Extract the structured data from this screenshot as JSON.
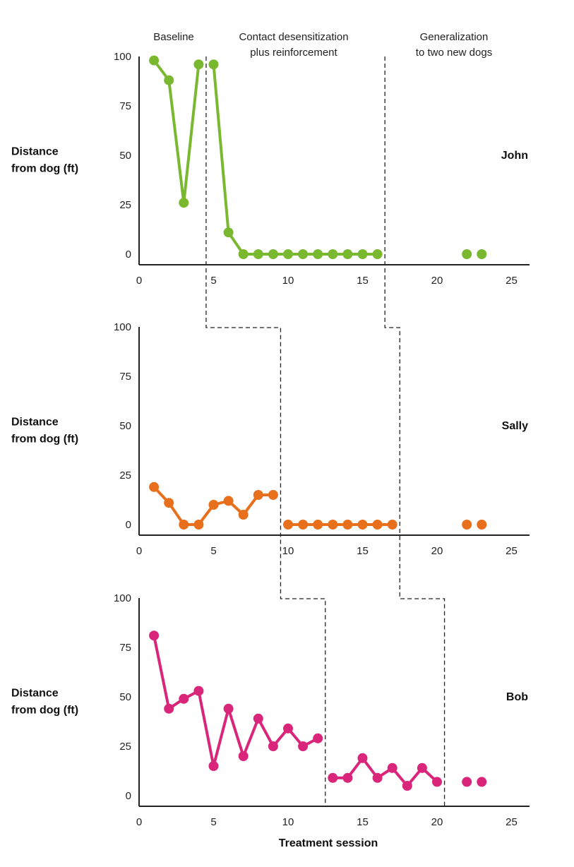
{
  "chart_data": {
    "type": "line",
    "xlabel": "Treatment session",
    "ylabel_lines": [
      "Distance",
      "from dog (ft)"
    ],
    "xlim": [
      0,
      25
    ],
    "ylim": [
      0,
      100
    ],
    "xticks": [
      0,
      5,
      10,
      15,
      20,
      25
    ],
    "yticks": [
      0,
      25,
      50,
      75,
      100
    ],
    "phases": [
      {
        "lines": [
          "Baseline"
        ]
      },
      {
        "lines": [
          "Contact desensitization",
          "plus reinforcement"
        ]
      },
      {
        "lines": [
          "Generalization",
          "to two new dogs"
        ]
      }
    ],
    "panels": [
      {
        "participant": "John",
        "color": "#7ab830",
        "phase_change_after": [
          4.5,
          16.5
        ],
        "segments": [
          [
            [
              1,
              98
            ],
            [
              2,
              88
            ],
            [
              3,
              26
            ],
            [
              4,
              96
            ]
          ],
          [
            [
              5,
              96
            ],
            [
              6,
              11
            ],
            [
              7,
              0
            ],
            [
              8,
              0
            ],
            [
              9,
              0
            ],
            [
              10,
              0
            ],
            [
              11,
              0
            ],
            [
              12,
              0
            ],
            [
              13,
              0
            ],
            [
              14,
              0
            ],
            [
              15,
              0
            ],
            [
              16,
              0
            ]
          ],
          [
            [
              22,
              0
            ]
          ],
          [
            [
              23,
              0
            ]
          ]
        ]
      },
      {
        "participant": "Sally",
        "color": "#e8701d",
        "phase_change_after": [
          9.5,
          17.5
        ],
        "segments": [
          [
            [
              1,
              19
            ],
            [
              2,
              11
            ],
            [
              3,
              0
            ],
            [
              4,
              0
            ],
            [
              5,
              10
            ],
            [
              6,
              12
            ],
            [
              7,
              5
            ],
            [
              8,
              15
            ],
            [
              9,
              15
            ]
          ],
          [
            [
              10,
              0
            ],
            [
              11,
              0
            ],
            [
              12,
              0
            ],
            [
              13,
              0
            ],
            [
              14,
              0
            ],
            [
              15,
              0
            ],
            [
              16,
              0
            ],
            [
              17,
              0
            ]
          ],
          [
            [
              22,
              0
            ]
          ],
          [
            [
              23,
              0
            ]
          ]
        ]
      },
      {
        "participant": "Bob",
        "color": "#d9267a",
        "phase_change_after": [
          12.5,
          20.5
        ],
        "segments": [
          [
            [
              1,
              81
            ],
            [
              2,
              44
            ],
            [
              3,
              49
            ],
            [
              4,
              53
            ],
            [
              5,
              15
            ],
            [
              6,
              44
            ],
            [
              7,
              20
            ],
            [
              8,
              39
            ],
            [
              9,
              25
            ],
            [
              10,
              34
            ],
            [
              11,
              25
            ],
            [
              12,
              29
            ]
          ],
          [
            [
              13,
              9
            ],
            [
              14,
              9
            ],
            [
              15,
              19
            ],
            [
              16,
              9
            ],
            [
              17,
              14
            ],
            [
              18,
              5
            ],
            [
              19,
              14
            ],
            [
              20,
              7
            ]
          ],
          [
            [
              22,
              7
            ]
          ],
          [
            [
              23,
              7
            ]
          ]
        ]
      }
    ]
  }
}
